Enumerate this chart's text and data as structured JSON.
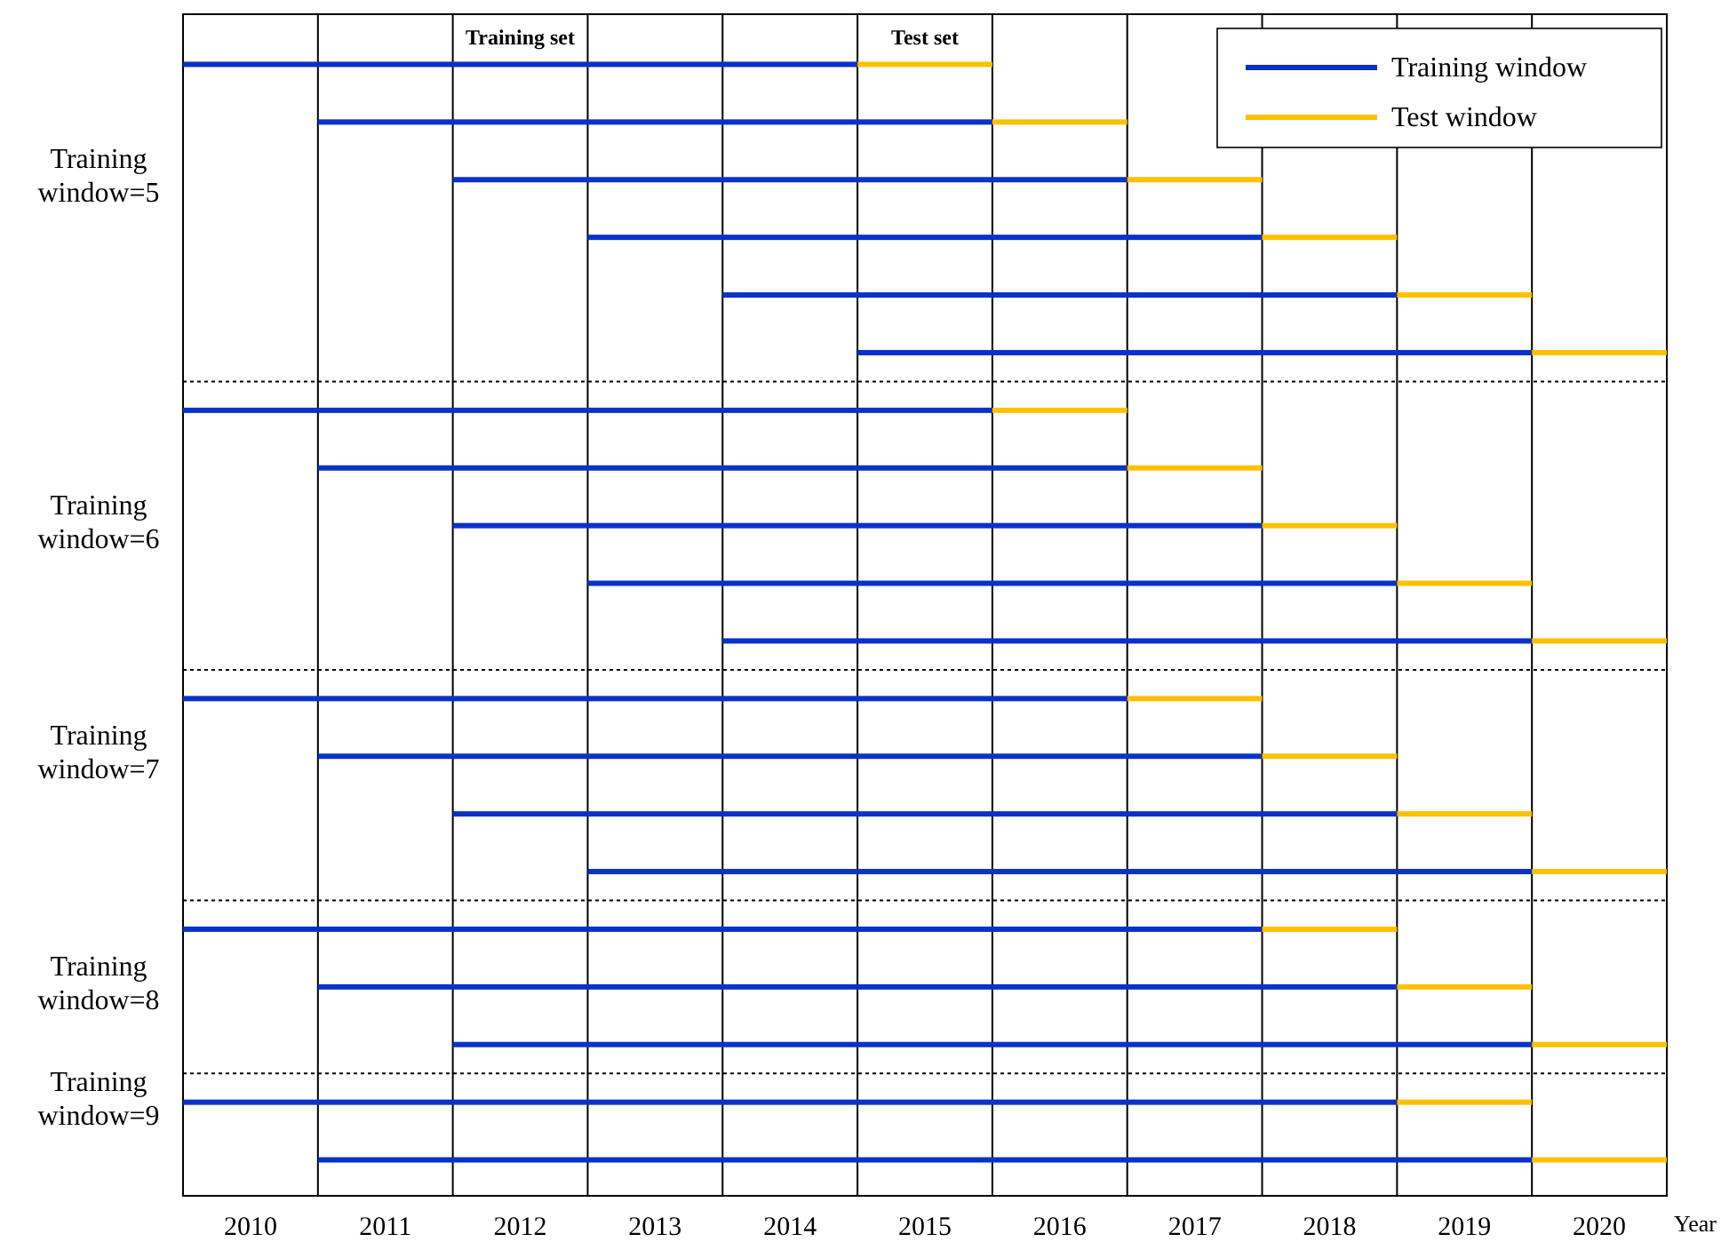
{
  "chart_data": {
    "type": "bar",
    "orientation": "horizontal",
    "xlabel": "Year",
    "categories": [
      null,
      null,
      "Training\nwindow=5",
      null,
      null,
      null,
      null,
      null,
      "Training\nwindow=6",
      null,
      null,
      null,
      "Training\nwindow=7",
      null,
      null,
      null,
      "Training\nwindow=8",
      null,
      "Training\nwindow=9",
      null
    ],
    "series": [
      {
        "name": "Training window",
        "color": "#0a32c8",
        "base": [
          2010,
          2011,
          2012,
          2013,
          2014,
          2015,
          2010,
          2011,
          2012,
          2013,
          2014,
          2010,
          2011,
          2012,
          2013,
          2010,
          2011,
          2012,
          2010,
          2011
        ],
        "values": [
          5,
          5,
          5,
          5,
          5,
          5,
          6,
          6,
          6,
          6,
          6,
          7,
          7,
          7,
          7,
          8,
          8,
          8,
          9,
          9
        ]
      },
      {
        "name": "Test window",
        "color": "#ffc000",
        "base": [
          2015,
          2016,
          2017,
          2018,
          2019,
          2020,
          2016,
          2017,
          2018,
          2019,
          2020,
          2017,
          2018,
          2019,
          2020,
          2018,
          2019,
          2020,
          2019,
          2020
        ],
        "values": [
          1,
          1,
          1,
          1,
          1,
          1,
          1,
          1,
          1,
          1,
          1,
          1,
          1,
          1,
          1,
          1,
          1,
          1,
          1,
          1
        ]
      }
    ],
    "xlim": [
      2010,
      2021
    ],
    "xticks": [
      {
        "value": 2010,
        "label": null
      },
      {
        "value": 2011,
        "label": null
      },
      {
        "value": 2012,
        "label": null
      },
      {
        "value": 2013,
        "label": null
      },
      {
        "value": 2014,
        "label": null
      },
      {
        "value": 2015,
        "label": null
      },
      {
        "value": 2016,
        "label": null
      },
      {
        "value": 2017,
        "label": null
      },
      {
        "value": 2018,
        "label": null
      },
      {
        "value": 2019,
        "label": null
      },
      {
        "value": 2020,
        "label": null
      },
      {
        "value": 2021,
        "label": null
      },
      {
        "value": 2010.5,
        "label": "2010"
      },
      {
        "value": 2011.5,
        "label": "2011"
      },
      {
        "value": 2012.5,
        "label": "2012"
      },
      {
        "value": 2013.5,
        "label": "2013"
      },
      {
        "value": 2014.5,
        "label": "2014"
      },
      {
        "value": 2015.5,
        "label": "2015"
      },
      {
        "value": 2016.5,
        "label": "2016"
      },
      {
        "value": 2017.5,
        "label": "2017"
      },
      {
        "value": 2018.5,
        "label": "2018"
      },
      {
        "value": 2019.5,
        "label": "2019"
      },
      {
        "value": 2020.5,
        "label": "2020"
      }
    ],
    "grid": "x",
    "annotations": [
      "Training set",
      "Test set"
    ],
    "legend": "top right"
  }
}
